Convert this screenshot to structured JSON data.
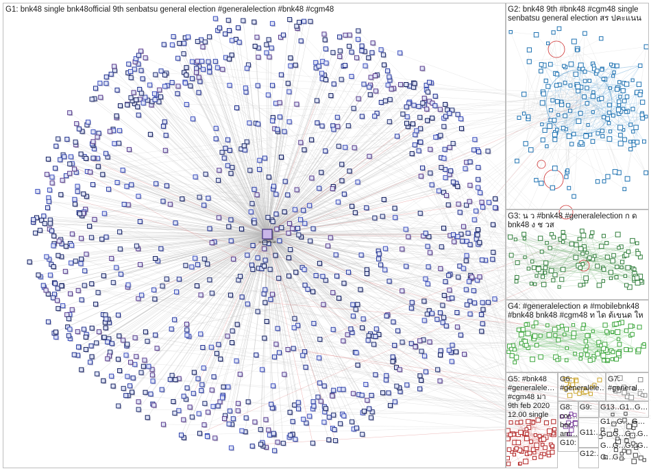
{
  "graph": {
    "hub_name": "bnk48official",
    "groups": [
      {
        "id": "G1",
        "label": "G1: bnk48 single bnk48official 9th senbatsu general election #generalelection #bnk48 #cgm48",
        "color": "#1b2a7a"
      },
      {
        "id": "G2",
        "label": "G2: bnk48 9th #bnk48 #cgm48 single senbatsu general election สร ปคะแนน",
        "color": "#1a6fb0"
      },
      {
        "id": "G3",
        "label": "G3: น ว #bnk48 #generalelection ก ด bnk48 ง ช วส",
        "color": "#2f7d3a"
      },
      {
        "id": "G4",
        "label": "G4: #generalelection ค #mobilebnk48 #bnk48 bnk48 #cgm48 ท ได ต้เขนด ให",
        "color": "#3aa53a"
      },
      {
        "id": "G5",
        "label": "G5: #bnk48 #generalele… #cgm48 มา 9th feb 2020 12.00 single",
        "color": "#b22222"
      },
      {
        "id": "G6",
        "label": "G6: #generalele…",
        "color": "#c9a227"
      },
      {
        "id": "G7",
        "label": "G7: #general…",
        "color": "#8a8a8a"
      },
      {
        "id": "G8",
        "label": "G8: cor… ber… am…",
        "color": "#7a3e9d"
      },
      {
        "id": "G9",
        "label": "G9: ห…",
        "color": "#555555"
      },
      {
        "id": "G10",
        "label": "G10: #ge…",
        "color": "#444444"
      },
      {
        "id": "G11",
        "label": "G11:…",
        "color": "#444444"
      },
      {
        "id": "G12",
        "label": "G12:…",
        "color": "#444444"
      },
      {
        "id": "G13",
        "label": "G13…",
        "color": "#444444"
      },
      {
        "id": "G14",
        "label": "G1…",
        "color": "#444444"
      },
      {
        "id": "G15",
        "label": "G…",
        "color": "#444444"
      },
      {
        "id": "G16",
        "label": "G1…",
        "color": "#444444"
      },
      {
        "id": "G17",
        "label": "G…",
        "color": "#444444"
      },
      {
        "id": "G18",
        "label": "G…",
        "color": "#444444"
      },
      {
        "id": "G19",
        "label": "G…",
        "color": "#444444"
      },
      {
        "id": "G20",
        "label": "G…",
        "color": "#444444"
      },
      {
        "id": "G21",
        "label": "G…",
        "color": "#444444"
      },
      {
        "id": "G22",
        "label": "G…",
        "color": "#444444"
      },
      {
        "id": "G23",
        "label": "G…",
        "color": "#444444"
      },
      {
        "id": "G24",
        "label": "G…",
        "color": "#444444"
      },
      {
        "id": "G25",
        "label": "G…",
        "color": "#444444"
      },
      {
        "id": "G26",
        "label": "G…",
        "color": "#444444"
      },
      {
        "id": "G27",
        "label": "G…",
        "color": "#444444"
      },
      {
        "id": "G28",
        "label": "G…",
        "color": "#444444"
      }
    ]
  }
}
